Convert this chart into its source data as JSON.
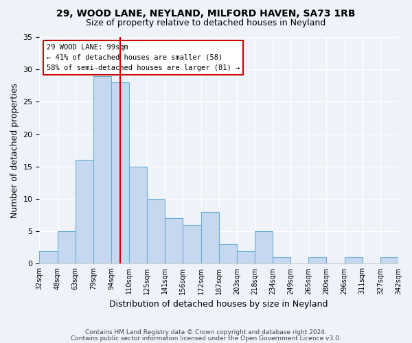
{
  "title1": "29, WOOD LANE, NEYLAND, MILFORD HAVEN, SA73 1RB",
  "title2": "Size of property relative to detached houses in Neyland",
  "xlabel": "Distribution of detached houses by size in Neyland",
  "ylabel": "Number of detached properties",
  "bin_labels": [
    "32sqm",
    "48sqm",
    "63sqm",
    "79sqm",
    "94sqm",
    "110sqm",
    "125sqm",
    "141sqm",
    "156sqm",
    "172sqm",
    "187sqm",
    "203sqm",
    "218sqm",
    "234sqm",
    "249sqm",
    "265sqm",
    "280sqm",
    "296sqm",
    "311sqm",
    "327sqm",
    "342sqm"
  ],
  "bar_heights": [
    2,
    5,
    16,
    29,
    28,
    15,
    10,
    7,
    6,
    8,
    3,
    2,
    5,
    1,
    0,
    1,
    0,
    1,
    0,
    1
  ],
  "bar_color": "#c5d8f0",
  "bar_edge_color": "#6baed6",
  "vline_x": 4.5,
  "vline_color": "#cc0000",
  "ylim": [
    0,
    35
  ],
  "yticks": [
    0,
    5,
    10,
    15,
    20,
    25,
    30,
    35
  ],
  "annotation_text": "29 WOOD LANE: 99sqm\n← 41% of detached houses are smaller (58)\n58% of semi-detached houses are larger (81) →",
  "annotation_box_color": "#ffffff",
  "annotation_box_edge": "#cc0000",
  "footer1": "Contains HM Land Registry data © Crown copyright and database right 2024.",
  "footer2": "Contains public sector information licensed under the Open Government Licence v3.0.",
  "background_color": "#eef2f9"
}
